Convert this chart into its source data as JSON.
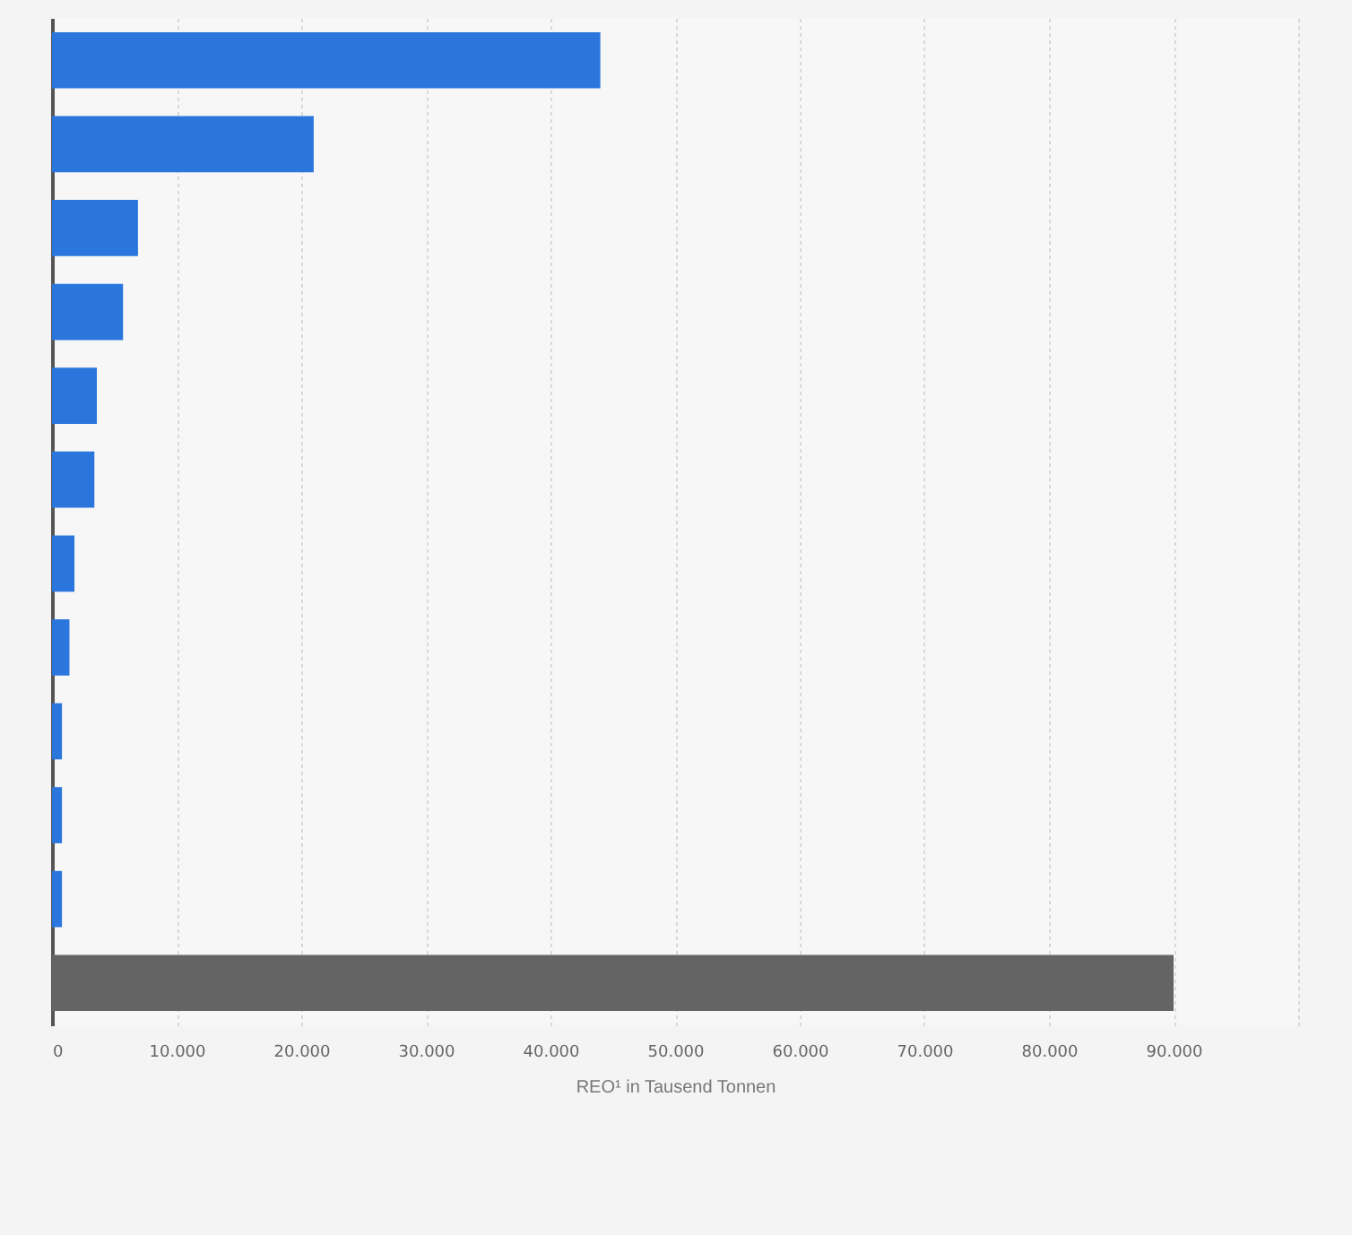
{
  "chart_data": {
    "type": "bar",
    "orientation": "horizontal",
    "xlabel": "REO¹ in Tausend Tonnen",
    "categories": [
      null,
      null,
      null,
      null,
      null,
      null,
      null,
      null,
      null,
      null,
      null,
      null
    ],
    "values": [
      44000,
      21000,
      6900,
      5700,
      3600,
      3400,
      1800,
      1400,
      800,
      800,
      800,
      90000
    ],
    "colors": [
      "#2a76dd",
      "#2a76dd",
      "#2a76dd",
      "#2a76dd",
      "#2a76dd",
      "#2a76dd",
      "#2a76dd",
      "#2a76dd",
      "#2a76dd",
      "#2a76dd",
      "#2a76dd",
      "#646464"
    ],
    "xlim": [
      0,
      100000
    ],
    "xticks": [
      0,
      {
        "value": 10000,
        "label": "10.000"
      },
      {
        "value": 20000,
        "label": "20.000"
      },
      {
        "value": 30000,
        "label": "30.000"
      },
      {
        "value": 40000,
        "label": "40.000"
      },
      {
        "value": 50000,
        "label": "50.000"
      },
      {
        "value": 60000,
        "label": "60.000"
      },
      {
        "value": 70000,
        "label": "70.000"
      },
      {
        "value": 80000,
        "label": "80.000"
      },
      {
        "value": 90000,
        "label": "90.000"
      },
      {
        "value": 100000,
        "label": null
      }
    ],
    "grid": "x"
  }
}
